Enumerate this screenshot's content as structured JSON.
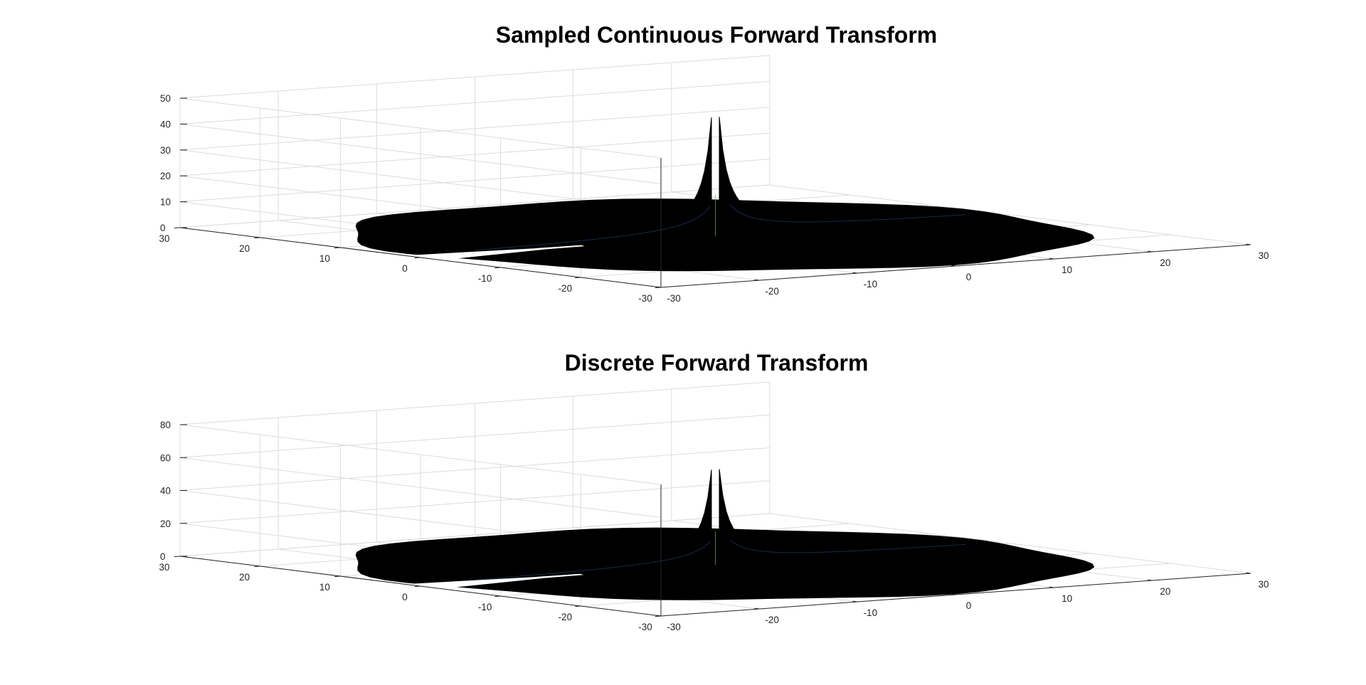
{
  "chart_data": [
    {
      "type": "surface",
      "title": "Sampled Continuous Forward Transform",
      "xlabel": "",
      "ylabel": "",
      "zlabel": "",
      "xlim": [
        -30,
        30
      ],
      "ylim": [
        -30,
        30
      ],
      "zlim": [
        0,
        50
      ],
      "x_ticks": [
        -30,
        -20,
        -10,
        0,
        10,
        20,
        30
      ],
      "y_ticks": [
        -30,
        -20,
        -10,
        0,
        10,
        20,
        30
      ],
      "z_ticks": [
        0,
        10,
        20,
        30,
        40,
        50
      ],
      "grid": true,
      "colors": {
        "surface": "#000000",
        "highlight": "#2a4a8c",
        "accent": "#6fae5f"
      },
      "peaks": [
        {
          "x": -1,
          "y": 0,
          "z": 46
        },
        {
          "x": 1,
          "y": 0,
          "z": 46
        }
      ]
    },
    {
      "type": "surface",
      "title": "Discrete Forward Transform",
      "xlabel": "",
      "ylabel": "",
      "zlabel": "",
      "xlim": [
        -30,
        30
      ],
      "ylim": [
        -30,
        30
      ],
      "zlim": [
        0,
        80
      ],
      "x_ticks": [
        -30,
        -20,
        -10,
        0,
        10,
        20,
        30
      ],
      "y_ticks": [
        -30,
        -20,
        -10,
        0,
        10,
        20,
        30
      ],
      "z_ticks": [
        0,
        20,
        40,
        60,
        80
      ],
      "grid": true,
      "colors": {
        "surface": "#000000",
        "highlight": "#2a4a8c",
        "accent": "#6fae5f"
      },
      "peaks": [
        {
          "x": -1,
          "y": 0,
          "z": 58
        },
        {
          "x": 1,
          "y": 0,
          "z": 58
        }
      ]
    }
  ]
}
